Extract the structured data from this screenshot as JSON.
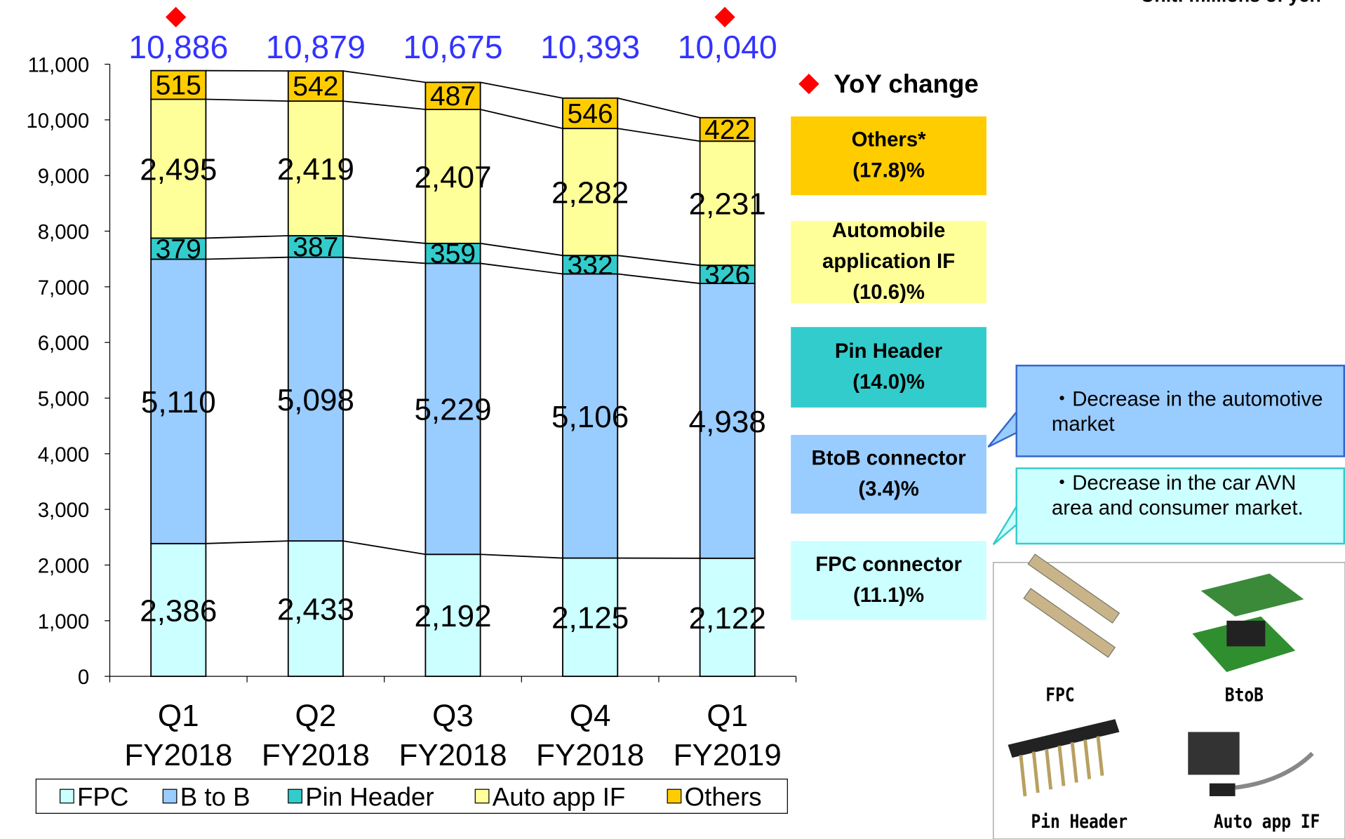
{
  "chart_data": {
    "type": "stacked-bar",
    "unit_label": "Unit: millions of yen",
    "categories": [
      "Q1 FY2018",
      "Q2 FY2018",
      "Q3 FY2018",
      "Q4 FY2018",
      "Q1 FY2019"
    ],
    "series": [
      {
        "name": "FPC",
        "color": "#ccffff",
        "values": [
          2386,
          2433,
          2192,
          2125,
          2122
        ],
        "value_labels": [
          "2,386",
          "2,433",
          "2,192",
          "2,125",
          "2,122"
        ]
      },
      {
        "name": "B to B",
        "color": "#99ccff",
        "values": [
          5110,
          5098,
          5229,
          5106,
          4938
        ],
        "value_labels": [
          "5,110",
          "5,098",
          "5,229",
          "5,106",
          "4,938"
        ]
      },
      {
        "name": "Pin Header",
        "color": "#33cccc",
        "values": [
          379,
          387,
          359,
          332,
          326
        ],
        "value_labels": [
          "379",
          "387",
          "359",
          "332",
          "326"
        ]
      },
      {
        "name": "Auto app IF",
        "color": "#ffff99",
        "values": [
          2495,
          2419,
          2407,
          2282,
          2231
        ],
        "value_labels": [
          "2,495",
          "2,419",
          "2,407",
          "2,282",
          "2,231"
        ]
      },
      {
        "name": "Others",
        "color": "#ffcc00",
        "values": [
          515,
          542,
          487,
          546,
          422
        ],
        "value_labels": [
          "515",
          "542",
          "487",
          "546",
          "422"
        ]
      }
    ],
    "totals": {
      "values": [
        10886,
        10879,
        10675,
        10393,
        10040
      ],
      "value_labels": [
        "10,886",
        "10,879",
        "10,675",
        "10,393",
        "10,040"
      ],
      "color": "#3333ff"
    },
    "yoy_label": "YoY change",
    "yoy_marker_color": "#ff0000",
    "yoy_marker_categories": [
      0,
      4
    ],
    "ylim": [
      0,
      11000
    ],
    "yticks": [
      0,
      {
        "value": 1000,
        "label": "1,000"
      },
      {
        "value": 2000,
        "label": "2,000"
      },
      {
        "value": 3000,
        "label": "3,000"
      },
      {
        "value": 4000,
        "label": "4,000"
      },
      {
        "value": 5000,
        "label": "5,000"
      },
      {
        "value": 6000,
        "label": "6,000"
      },
      {
        "value": 7000,
        "label": "7,000"
      },
      {
        "value": 8000,
        "label": "8,000"
      },
      {
        "value": 9000,
        "label": "9,000"
      },
      {
        "value": 10000,
        "label": "10,000"
      },
      {
        "value": 11000,
        "label": "11,000"
      }
    ]
  },
  "segment_changes": [
    {
      "label": "Others*",
      "change": "(17.8)%",
      "color": "#ffcc00"
    },
    {
      "label": "Automobile application IF",
      "change": "(10.6)%",
      "color": "#ffff99"
    },
    {
      "label": "Pin Header",
      "change": "(14.0)%",
      "color": "#33cccc"
    },
    {
      "label": "BtoB connector",
      "change": "(3.4)%",
      "color": "#99ccff"
    },
    {
      "label": "FPC connector",
      "change": "(11.1)%",
      "color": "#ccffff"
    }
  ],
  "callouts": [
    "・Decrease in the automotive market",
    "・Decrease in the car AVN area and consumer market."
  ],
  "products": [
    "FPC",
    "BtoB",
    "Pin Header",
    "Auto app IF"
  ]
}
